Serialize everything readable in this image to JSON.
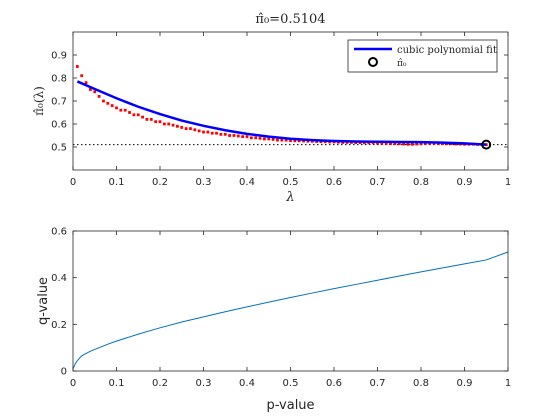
{
  "chart_data": [
    {
      "type": "scatter",
      "title": "π̂₀=0.5104",
      "xlabel": "λ",
      "ylabel": "π̂₀(λ)",
      "xlim": [
        0,
        1
      ],
      "ylim": [
        0.4,
        1.0
      ],
      "xticks": [
        0,
        0.1,
        0.2,
        0.3,
        0.4,
        0.5,
        0.6,
        0.7,
        0.8,
        0.9,
        1
      ],
      "xtick_labels": [
        "0",
        "0.1",
        "0.2",
        "0.3",
        "0.4",
        "0.5",
        "0.6",
        "0.7",
        "0.8",
        "0.9",
        "1"
      ],
      "yticks": [
        0.5,
        0.6,
        0.7,
        0.8,
        0.9
      ],
      "ytick_labels": [
        "0.5",
        "0.6",
        "0.7",
        "0.8",
        "0.9"
      ],
      "reference_line_y": 0.5104,
      "legend_position": "top-right",
      "series": [
        {
          "name": "",
          "kind": "points",
          "color": "#ff0000",
          "x": [
            0.01,
            0.02,
            0.03,
            0.04,
            0.05,
            0.06,
            0.07,
            0.08,
            0.09,
            0.1,
            0.11,
            0.12,
            0.13,
            0.14,
            0.15,
            0.16,
            0.17,
            0.18,
            0.19,
            0.2,
            0.21,
            0.22,
            0.23,
            0.24,
            0.25,
            0.26,
            0.27,
            0.28,
            0.29,
            0.3,
            0.31,
            0.32,
            0.33,
            0.34,
            0.35,
            0.36,
            0.37,
            0.38,
            0.39,
            0.4,
            0.41,
            0.42,
            0.43,
            0.44,
            0.45,
            0.46,
            0.47,
            0.48,
            0.49,
            0.5,
            0.51,
            0.52,
            0.53,
            0.54,
            0.55,
            0.56,
            0.57,
            0.58,
            0.59,
            0.6,
            0.61,
            0.62,
            0.63,
            0.64,
            0.65,
            0.66,
            0.67,
            0.68,
            0.69,
            0.7,
            0.71,
            0.72,
            0.73,
            0.74,
            0.75,
            0.76,
            0.77,
            0.78,
            0.79,
            0.8,
            0.81,
            0.82,
            0.83,
            0.84,
            0.85,
            0.86,
            0.87,
            0.88,
            0.89,
            0.9,
            0.91,
            0.92,
            0.93,
            0.94,
            0.95
          ],
          "y": [
            0.85,
            0.81,
            0.78,
            0.75,
            0.74,
            0.72,
            0.7,
            0.69,
            0.68,
            0.67,
            0.66,
            0.66,
            0.65,
            0.64,
            0.64,
            0.63,
            0.62,
            0.62,
            0.61,
            0.61,
            0.6,
            0.6,
            0.595,
            0.59,
            0.585,
            0.58,
            0.58,
            0.575,
            0.57,
            0.565,
            0.565,
            0.56,
            0.56,
            0.555,
            0.555,
            0.55,
            0.55,
            0.548,
            0.545,
            0.545,
            0.54,
            0.54,
            0.538,
            0.535,
            0.535,
            0.533,
            0.53,
            0.53,
            0.53,
            0.528,
            0.527,
            0.527,
            0.526,
            0.525,
            0.525,
            0.524,
            0.523,
            0.523,
            0.522,
            0.522,
            0.521,
            0.52,
            0.52,
            0.52,
            0.519,
            0.519,
            0.518,
            0.518,
            0.518,
            0.517,
            0.516,
            0.516,
            0.515,
            0.515,
            0.514,
            0.513,
            0.512,
            0.512,
            0.513,
            0.514,
            0.515,
            0.516,
            0.516,
            0.515,
            0.515,
            0.514,
            0.514,
            0.513,
            0.513,
            0.512,
            0.512,
            0.512,
            0.511,
            0.511,
            0.5104
          ]
        },
        {
          "name": "cubic polynomial fit",
          "kind": "line",
          "color": "#0000ff",
          "x": [
            0.01,
            0.05,
            0.1,
            0.15,
            0.2,
            0.25,
            0.3,
            0.35,
            0.4,
            0.45,
            0.5,
            0.55,
            0.6,
            0.65,
            0.7,
            0.75,
            0.8,
            0.85,
            0.9,
            0.95
          ],
          "y": [
            0.785,
            0.752,
            0.712,
            0.675,
            0.643,
            0.615,
            0.592,
            0.573,
            0.557,
            0.545,
            0.536,
            0.53,
            0.526,
            0.524,
            0.523,
            0.522,
            0.521,
            0.519,
            0.516,
            0.5104
          ]
        },
        {
          "name": "π̂₀",
          "kind": "marker",
          "color": "#000000",
          "x": [
            0.95
          ],
          "y": [
            0.5104
          ]
        }
      ]
    },
    {
      "type": "line",
      "title": "",
      "xlabel": "p-value",
      "ylabel": "q-value",
      "xlim": [
        0,
        1
      ],
      "ylim": [
        0,
        0.6
      ],
      "xticks": [
        0,
        0.1,
        0.2,
        0.3,
        0.4,
        0.5,
        0.6,
        0.7,
        0.8,
        0.9,
        1
      ],
      "xtick_labels": [
        "0",
        "0.1",
        "0.2",
        "0.3",
        "0.4",
        "0.5",
        "0.6",
        "0.7",
        "0.8",
        "0.9",
        "1"
      ],
      "yticks": [
        0,
        0.2,
        0.4,
        0.6
      ],
      "ytick_labels": [
        "0",
        "0.2",
        "0.4",
        "0.6"
      ],
      "series": [
        {
          "name": "",
          "color": "#0072bd",
          "x": [
            0,
            0.005,
            0.01,
            0.02,
            0.04,
            0.06,
            0.08,
            0.1,
            0.15,
            0.2,
            0.25,
            0.3,
            0.35,
            0.4,
            0.45,
            0.5,
            0.55,
            0.6,
            0.65,
            0.7,
            0.75,
            0.8,
            0.85,
            0.9,
            0.95,
            1.0
          ],
          "y": [
            0.01,
            0.03,
            0.045,
            0.065,
            0.085,
            0.1,
            0.115,
            0.128,
            0.158,
            0.185,
            0.21,
            0.232,
            0.254,
            0.275,
            0.295,
            0.315,
            0.334,
            0.353,
            0.371,
            0.389,
            0.407,
            0.425,
            0.442,
            0.459,
            0.476,
            0.51
          ]
        }
      ]
    }
  ]
}
